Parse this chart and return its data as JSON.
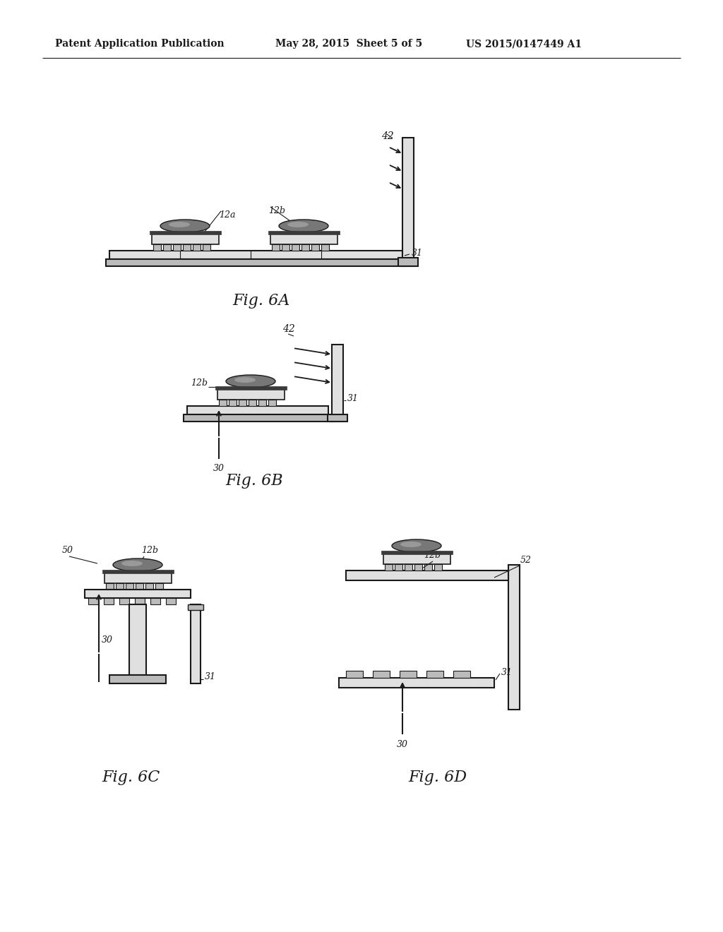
{
  "bg_color": "#ffffff",
  "header_left": "Patent Application Publication",
  "header_mid": "May 28, 2015  Sheet 5 of 5",
  "header_right": "US 2015/0147449 A1",
  "fig6A_label": "Fig. 6A",
  "fig6B_label": "Fig. 6B",
  "fig6C_label": "Fig. 6C",
  "fig6D_label": "Fig. 6D",
  "line_color": "#1a1a1a",
  "fill_dark": "#3a3a3a",
  "fill_mid": "#777777",
  "fill_light": "#bbbbbb",
  "fill_very_light": "#e0e0e0",
  "fill_white": "#ffffff"
}
